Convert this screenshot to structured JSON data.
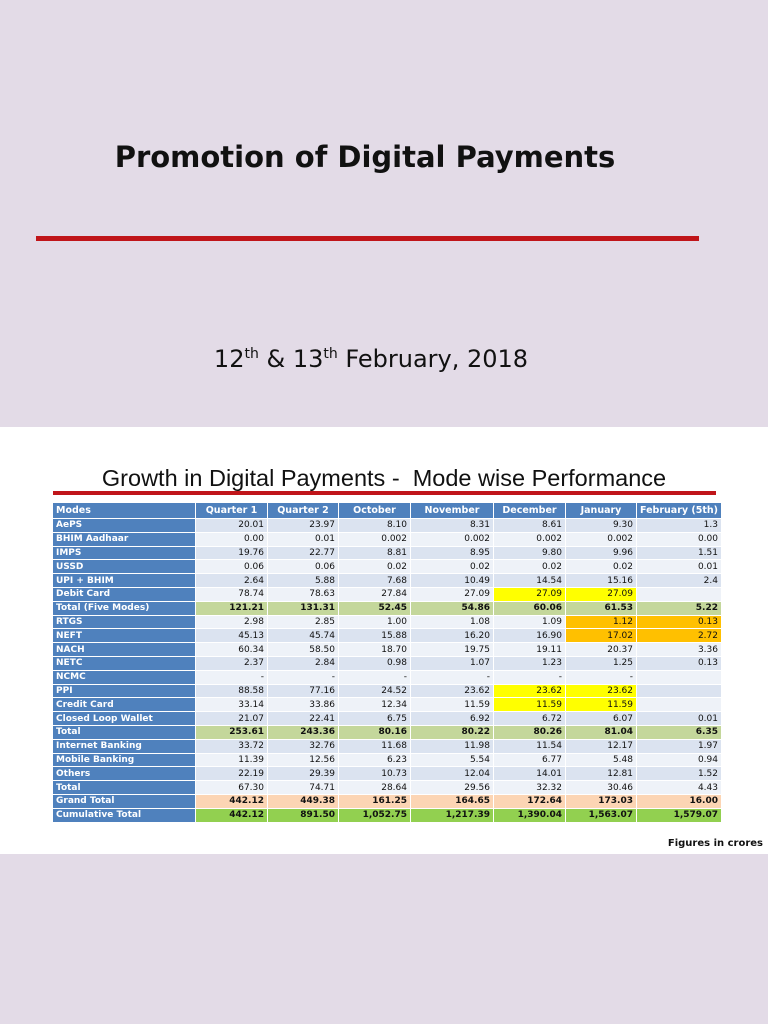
{
  "slide1": {
    "title": "Promotion of Digital Payments",
    "date": {
      "d1": "12",
      "sup1": "th",
      "amp": " & ",
      "d2": "13",
      "sup2": "th",
      "rest": " February, 2018"
    }
  },
  "slide2": {
    "title": "Growth in Digital Payments -  Mode wise Performance",
    "note": "Figures in crores",
    "columns": [
      "Modes",
      "Quarter 1",
      "Quarter 2",
      "October",
      "November",
      "December",
      "January",
      "February (5th)"
    ],
    "rows": [
      {
        "mode": "AePS",
        "values": [
          "20.01",
          "23.97",
          "8.10",
          "8.31",
          "8.61",
          "9.30",
          "1.3"
        ]
      },
      {
        "mode": "BHIM Aadhaar",
        "values": [
          "0.00",
          "0.01",
          "0.002",
          "0.002",
          "0.002",
          "0.002",
          "0.00"
        ]
      },
      {
        "mode": "IMPS",
        "values": [
          "19.76",
          "22.77",
          "8.81",
          "8.95",
          "9.80",
          "9.96",
          "1.51"
        ]
      },
      {
        "mode": "USSD",
        "values": [
          "0.06",
          "0.06",
          "0.02",
          "0.02",
          "0.02",
          "0.02",
          "0.01"
        ]
      },
      {
        "mode": "UPI + BHIM",
        "values": [
          "2.64",
          "5.88",
          "7.68",
          "10.49",
          "14.54",
          "15.16",
          "2.4"
        ]
      },
      {
        "mode": "Debit Card",
        "values": [
          "78.74",
          "78.63",
          "27.84",
          "27.09",
          "27.09",
          "27.09",
          ""
        ]
      },
      {
        "mode": "Total (Five Modes)",
        "values": [
          "121.21",
          "131.31",
          "52.45",
          "54.86",
          "60.06",
          "61.53",
          "5.22"
        ]
      },
      {
        "mode": "RTGS",
        "values": [
          "2.98",
          "2.85",
          "1.00",
          "1.08",
          "1.09",
          "1.12",
          "0.13"
        ]
      },
      {
        "mode": "NEFT",
        "values": [
          "45.13",
          "45.74",
          "15.88",
          "16.20",
          "16.90",
          "17.02",
          "2.72"
        ]
      },
      {
        "mode": "NACH",
        "values": [
          "60.34",
          "58.50",
          "18.70",
          "19.75",
          "19.11",
          "20.37",
          "3.36"
        ]
      },
      {
        "mode": "NETC",
        "values": [
          "2.37",
          "2.84",
          "0.98",
          "1.07",
          "1.23",
          "1.25",
          "0.13"
        ]
      },
      {
        "mode": "NCMC",
        "values": [
          "-",
          "-",
          "-",
          "-",
          "-",
          "-",
          ""
        ]
      },
      {
        "mode": "PPI",
        "values": [
          "88.58",
          "77.16",
          "24.52",
          "23.62",
          "23.62",
          "23.62",
          ""
        ]
      },
      {
        "mode": "Credit Card",
        "values": [
          "33.14",
          "33.86",
          "12.34",
          "11.59",
          "11.59",
          "11.59",
          ""
        ]
      },
      {
        "mode": "Closed Loop Wallet",
        "values": [
          "21.07",
          "22.41",
          "6.75",
          "6.92",
          "6.72",
          "6.07",
          "0.01"
        ]
      },
      {
        "mode": "Total",
        "values": [
          "253.61",
          "243.36",
          "80.16",
          "80.22",
          "80.26",
          "81.04",
          "6.35"
        ]
      },
      {
        "mode": "Internet Banking",
        "values": [
          "33.72",
          "32.76",
          "11.68",
          "11.98",
          "11.54",
          "12.17",
          "1.97"
        ]
      },
      {
        "mode": "Mobile Banking",
        "values": [
          "11.39",
          "12.56",
          "6.23",
          "5.54",
          "6.77",
          "5.48",
          "0.94"
        ]
      },
      {
        "mode": "Others",
        "values": [
          "22.19",
          "29.39",
          "10.73",
          "12.04",
          "14.01",
          "12.81",
          "1.52"
        ]
      },
      {
        "mode": "Total",
        "values": [
          "67.30",
          "74.71",
          "28.64",
          "29.56",
          "32.32",
          "30.46",
          "4.43"
        ]
      },
      {
        "mode": "Grand Total",
        "values": [
          "442.12",
          "449.38",
          "161.25",
          "164.65",
          "172.64",
          "173.03",
          "16.00"
        ]
      },
      {
        "mode": "Cumulative Total",
        "values": [
          "442.12",
          "891.50",
          "1,052.75",
          "1,217.39",
          "1,390.04",
          "1,563.07",
          "1,579.07"
        ]
      }
    ],
    "colors": {
      "header_blue": "#4f81bd",
      "title_rule_red": "#c0151a",
      "highlight_yellow": "#ffff00",
      "highlight_orange": "#ffc000",
      "total_green": "#c4d79b",
      "grand_total_peach": "#fcd5b4",
      "cumulative_green": "#92d050"
    }
  }
}
